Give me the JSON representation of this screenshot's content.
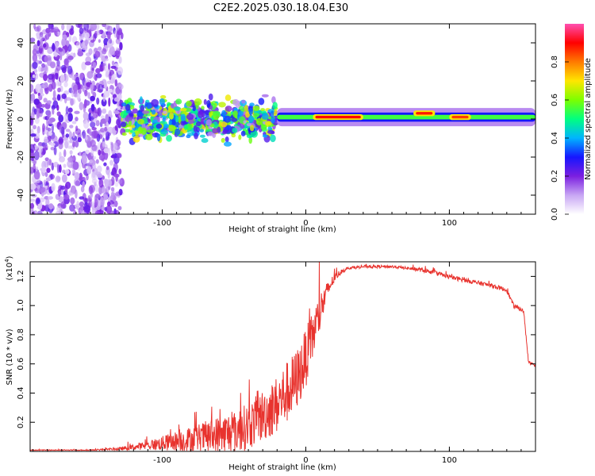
{
  "title": "C2E2.2025.030.18.04.E30",
  "colors": {
    "snr_line": "#e8332e",
    "spectral_scale": [
      "#ffffff",
      "#c8a6f4",
      "#7b1fe0",
      "#1616ff",
      "#00b4ff",
      "#00ff80",
      "#7cff00",
      "#ffe600",
      "#ff7a00",
      "#ff0000",
      "#ff4fb0"
    ]
  },
  "chart_data": [
    {
      "type": "heatmap",
      "xlabel": "Height of straight line (km)",
      "ylabel": "Frequency (Hz)",
      "xlim": [
        -192,
        160
      ],
      "ylim": [
        -50,
        50
      ],
      "xticks": [
        -100,
        0,
        100
      ],
      "yticks": [
        -40,
        -20,
        0,
        20,
        40
      ],
      "colorbar": {
        "label": "Normalized spectral amplitude",
        "range": [
          0,
          1
        ],
        "ticks": [
          "0.0",
          "0.2",
          "0.4",
          "0.6",
          "0.8"
        ]
      },
      "regions": [
        {
          "name": "noise",
          "x_range": [
            -192,
            -128
          ],
          "freq_range": [
            -50,
            50
          ],
          "amplitude": 0.12
        },
        {
          "name": "speckle",
          "x_range": [
            -128,
            -20
          ],
          "freq_center": 0,
          "freq_spread": 12,
          "amplitude": 0.35
        },
        {
          "name": "main-band",
          "x_range": [
            -20,
            160
          ],
          "freq_center": 1,
          "freq_width": 4,
          "amplitude": 0.55
        },
        {
          "name": "peak",
          "x_range": [
            5,
            40
          ],
          "freq_center": 1,
          "amplitude": 0.9
        },
        {
          "name": "peak",
          "x_range": [
            75,
            90
          ],
          "freq_center": 3,
          "amplitude": 0.88
        },
        {
          "name": "peak",
          "x_range": [
            100,
            115
          ],
          "freq_center": 1,
          "amplitude": 0.85
        }
      ]
    },
    {
      "type": "line",
      "xlabel": "Height of straight line (km)",
      "ylabel": "SNR (10 * v/v)",
      "ylabel_multiplier": "(x10",
      "ylabel_exponent": "4",
      "ylabel_close": ")",
      "xlim": [
        -192,
        160
      ],
      "ylim": [
        0,
        1.3
      ],
      "xticks": [
        -100,
        0,
        100
      ],
      "yticks": [
        "0.2",
        "0.4",
        "0.6",
        "0.8",
        "1.0",
        "1.2"
      ],
      "envelope": {
        "x": [
          -192,
          -150,
          -130,
          -110,
          -100,
          -90,
          -80,
          -70,
          -60,
          -50,
          -40,
          -30,
          -20,
          -15,
          -10,
          -5,
          0,
          5,
          10,
          15,
          20,
          25,
          30,
          40,
          50,
          60,
          70,
          80,
          90,
          100,
          110,
          120,
          130,
          140,
          145,
          150,
          152,
          155,
          160
        ],
        "base": [
          0.01,
          0.01,
          0.02,
          0.05,
          0.07,
          0.09,
          0.11,
          0.13,
          0.15,
          0.18,
          0.22,
          0.3,
          0.38,
          0.45,
          0.5,
          0.58,
          0.7,
          0.85,
          1.0,
          1.12,
          1.2,
          1.24,
          1.26,
          1.27,
          1.27,
          1.27,
          1.26,
          1.25,
          1.23,
          1.2,
          1.18,
          1.16,
          1.14,
          1.11,
          1.0,
          0.98,
          0.95,
          0.62,
          0.6
        ],
        "amp": [
          0.005,
          0.005,
          0.02,
          0.06,
          0.1,
          0.14,
          0.18,
          0.22,
          0.28,
          0.3,
          0.32,
          0.36,
          0.4,
          0.42,
          0.44,
          0.42,
          0.4,
          0.35,
          0.28,
          0.12,
          0.06,
          0.03,
          0.02,
          0.02,
          0.02,
          0.02,
          0.02,
          0.03,
          0.03,
          0.03,
          0.03,
          0.03,
          0.03,
          0.03,
          0.03,
          0.03,
          0.03,
          0.03,
          0.03
        ]
      }
    }
  ]
}
